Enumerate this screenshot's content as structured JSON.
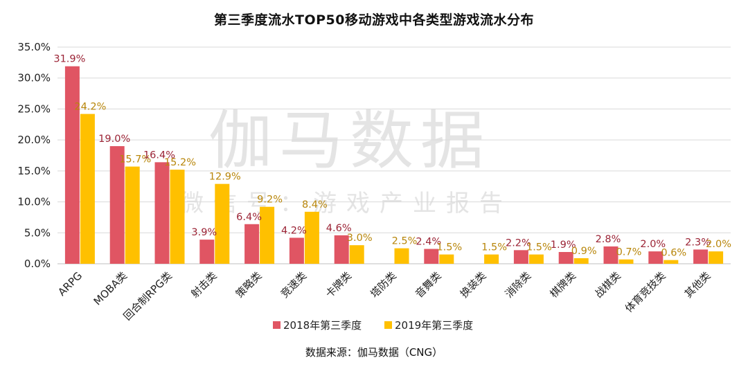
{
  "title": "第三季度流水TOP50移动游戏中各类型游戏流水分布",
  "source": "数据来源：伽马数据（CNG）",
  "watermark": {
    "main": "伽马数据",
    "sub": "微信号：游戏产业报告"
  },
  "colors": {
    "series_2018": "#e05563",
    "series_2019": "#ffc000",
    "grid": "#d9d9d9",
    "axis": "#bfbfbf"
  },
  "chart_data": {
    "type": "bar",
    "title": "第三季度流水TOP50移动游戏中各类型游戏流水分布",
    "categories": [
      "ARPG",
      "MOBA类",
      "回合制RPG类",
      "射击类",
      "策略类",
      "竞速类",
      "卡牌类",
      "塔防类",
      "音舞类",
      "换装类",
      "消除类",
      "棋牌类",
      "战棋类",
      "体育竞技类",
      "其他类"
    ],
    "series": [
      {
        "name": "2018年第三季度",
        "values": [
          31.9,
          19.0,
          16.4,
          3.9,
          6.4,
          4.2,
          4.6,
          null,
          2.4,
          null,
          2.2,
          1.9,
          2.8,
          2.0,
          2.3
        ],
        "labels": [
          "31.9%",
          "19.0%",
          "16.4%",
          "3.9%",
          "6.4%",
          "4.2%",
          "4.6%",
          "",
          "2.4%",
          "",
          "2.2%",
          "1.9%",
          "2.8%",
          "2.0%",
          "2.3%"
        ]
      },
      {
        "name": "2019年第三季度",
        "values": [
          24.2,
          15.7,
          15.2,
          12.9,
          9.2,
          8.4,
          3.0,
          2.5,
          1.5,
          1.5,
          1.5,
          0.9,
          0.7,
          0.6,
          2.0
        ],
        "labels": [
          "24.2%",
          "15.7%",
          "15.2%",
          "12.9%",
          "9.2%",
          "8.4%",
          "3.0%",
          "2.5%",
          "1.5%",
          "1.5%",
          "1.5%",
          "0.9%",
          "0.7%",
          "0.6%",
          "2.0%"
        ]
      }
    ],
    "ylim": [
      0,
      35
    ],
    "yticks": [
      "0.0%",
      "5.0%",
      "10.0%",
      "15.0%",
      "20.0%",
      "25.0%",
      "30.0%",
      "35.0%"
    ],
    "ytick_values": [
      0,
      5,
      10,
      15,
      20,
      25,
      30,
      35
    ],
    "grid": true,
    "legend_position": "bottom"
  }
}
